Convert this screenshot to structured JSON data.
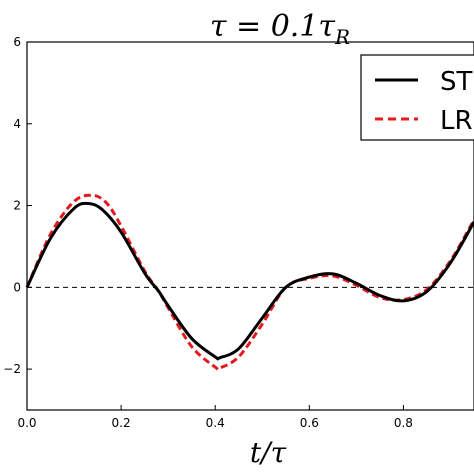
{
  "chart_data": {
    "type": "line",
    "title": "τ = 0.1τ",
    "title_subscript": "R",
    "xlabel": "t/τ",
    "ylabel": "",
    "xlim": [
      0.0,
      0.95
    ],
    "ylim": [
      -3,
      6
    ],
    "xticks": [
      "0.0",
      "0.2",
      "0.4",
      "0.6",
      "0.8"
    ],
    "yticks": [
      "−2",
      "0",
      "2",
      "4",
      "6"
    ],
    "grid": false,
    "legend_position": "top-right",
    "reference_line": {
      "y": 0,
      "style": "dashed",
      "color": "#000000"
    },
    "series": [
      {
        "name": "ST",
        "color": "#000000",
        "style": "solid",
        "x": [
          0.0,
          0.05,
          0.1,
          0.13,
          0.16,
          0.2,
          0.25,
          0.28,
          0.3,
          0.35,
          0.4,
          0.41,
          0.45,
          0.5,
          0.55,
          0.6,
          0.65,
          0.7,
          0.75,
          0.8,
          0.85,
          0.9,
          0.95
        ],
        "y": [
          0.0,
          1.2,
          1.93,
          2.05,
          1.9,
          1.35,
          0.35,
          -0.1,
          -0.45,
          -1.25,
          -1.7,
          -1.72,
          -1.5,
          -0.75,
          0.0,
          0.25,
          0.33,
          0.1,
          -0.2,
          -0.33,
          -0.1,
          0.6,
          1.6
        ]
      },
      {
        "name": "LR",
        "color": "#e41a1c",
        "style": "dashed",
        "x": [
          0.0,
          0.05,
          0.1,
          0.14,
          0.17,
          0.2,
          0.25,
          0.28,
          0.3,
          0.35,
          0.4,
          0.41,
          0.45,
          0.5,
          0.55,
          0.6,
          0.65,
          0.7,
          0.75,
          0.8,
          0.85,
          0.9,
          0.95
        ],
        "y": [
          0.0,
          1.3,
          2.1,
          2.25,
          2.05,
          1.5,
          0.4,
          -0.1,
          -0.5,
          -1.45,
          -1.95,
          -1.97,
          -1.7,
          -0.9,
          0.0,
          0.22,
          0.28,
          0.05,
          -0.25,
          -0.3,
          -0.05,
          0.65,
          1.65
        ]
      }
    ]
  }
}
